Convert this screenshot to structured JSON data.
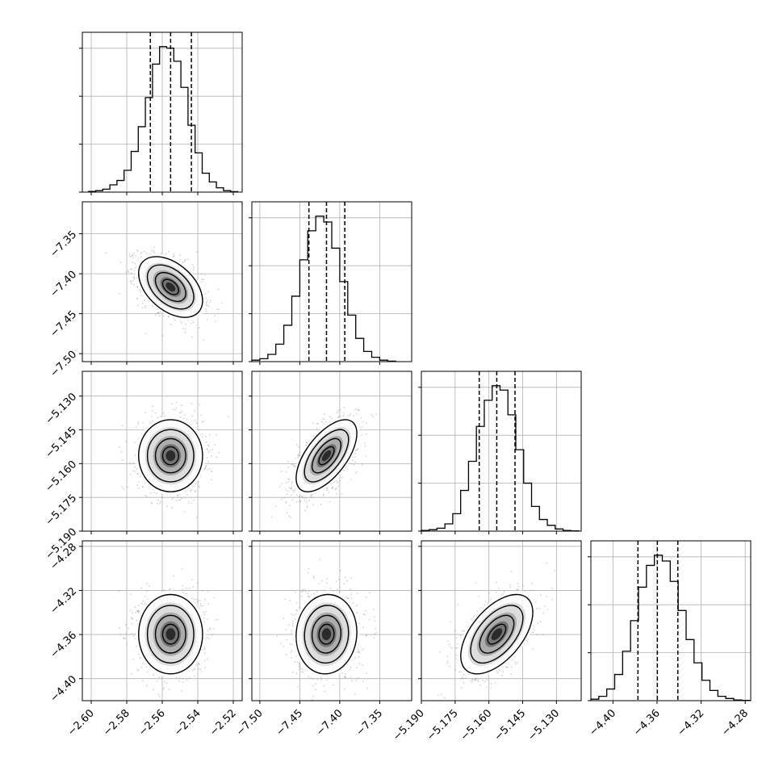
{
  "chart_data": {
    "type": "corner",
    "title": "",
    "grid": true,
    "params": [
      {
        "index": 0,
        "range": [
          -2.605,
          -2.515
        ],
        "ticks": [
          "-2.60",
          "-2.58",
          "-2.56",
          "-2.54",
          "-2.52"
        ],
        "tick_values": [
          -2.6,
          -2.58,
          -2.56,
          -2.54,
          -2.52
        ],
        "quantiles": [
          -2.5667,
          -2.5553,
          -2.5436
        ],
        "histogram": {
          "bin_centers": [
            -2.5995,
            -2.5955,
            -2.5915,
            -2.5875,
            -2.5835,
            -2.5795,
            -2.5755,
            -2.5715,
            -2.5675,
            -2.5635,
            -2.5595,
            -2.5555,
            -2.5515,
            -2.5475,
            -2.5435,
            -2.5395,
            -2.5355,
            -2.5315,
            -2.5275,
            -2.5235,
            -2.5195
          ],
          "counts": [
            0.5,
            1,
            2,
            5,
            8,
            15,
            28,
            45,
            65,
            88,
            100,
            99,
            90,
            72,
            46,
            27,
            13,
            7,
            3,
            1,
            0.3
          ]
        }
      },
      {
        "index": 1,
        "range": [
          -7.51,
          -7.31
        ],
        "ticks": [
          "-7.50",
          "-7.45",
          "-7.40",
          "-7.35"
        ],
        "tick_values": [
          -7.5,
          -7.45,
          -7.4,
          -7.35
        ],
        "quantiles": [
          -7.4386,
          -7.4166,
          -7.3937
        ],
        "histogram": {
          "bin_centers": [
            -7.505,
            -7.495,
            -7.485,
            -7.475,
            -7.465,
            -7.455,
            -7.445,
            -7.435,
            -7.425,
            -7.415,
            -7.405,
            -7.395,
            -7.385,
            -7.375,
            -7.365,
            -7.355,
            -7.345,
            -7.335
          ],
          "counts": [
            1,
            2,
            5,
            12,
            25,
            45,
            70,
            90,
            100,
            96,
            78,
            55,
            32,
            16,
            7,
            3,
            1,
            0.3
          ]
        }
      },
      {
        "index": 2,
        "range": [
          -5.19,
          -5.119
        ],
        "ticks": [
          "-5.190",
          "-5.175",
          "-5.160",
          "-5.145",
          "-5.130"
        ],
        "tick_values": [
          -5.19,
          -5.175,
          -5.16,
          -5.145,
          -5.13
        ],
        "quantiles": [
          -5.1643,
          -5.1565,
          -5.1484
        ],
        "histogram": {
          "bin_centers": [
            -5.1883,
            -5.1848,
            -5.1813,
            -5.1778,
            -5.1743,
            -5.1708,
            -5.1673,
            -5.1638,
            -5.1603,
            -5.1568,
            -5.1533,
            -5.1498,
            -5.1463,
            -5.1428,
            -5.1393,
            -5.1358,
            -5.1323,
            -5.1288,
            -5.1253,
            -5.1218
          ],
          "counts": [
            0.5,
            1,
            2,
            5,
            12,
            28,
            48,
            72,
            90,
            100,
            97,
            80,
            56,
            33,
            17,
            8,
            4,
            1.5,
            0.5,
            0.2
          ]
        }
      },
      {
        "index": 3,
        "range": [
          -4.42,
          -4.275
        ],
        "ticks": [
          "-4.40",
          "-4.36",
          "-4.32",
          "-4.28"
        ],
        "tick_values": [
          -4.4,
          -4.36,
          -4.32,
          -4.28
        ],
        "quantiles": [
          -4.3773,
          -4.3597,
          -4.3411
        ],
        "histogram": {
          "bin_centers": [
            -4.4164,
            -4.4092,
            -4.402,
            -4.3948,
            -4.3876,
            -4.3804,
            -4.3732,
            -4.366,
            -4.3588,
            -4.3516,
            -4.3444,
            -4.3372,
            -4.33,
            -4.3228,
            -4.3156,
            -4.3084,
            -4.3012,
            -4.294,
            -4.2868,
            -4.2796
          ],
          "counts": [
            1,
            3,
            8,
            18,
            34,
            55,
            78,
            93,
            100,
            96,
            82,
            62,
            42,
            26,
            14,
            7,
            3,
            1.5,
            0.5,
            0.2
          ]
        }
      }
    ],
    "pairs": [
      {
        "row": 1,
        "col": 0,
        "mean": [
          -2.5553,
          -7.4166
        ],
        "sd": [
          0.009,
          0.019
        ],
        "corr": -0.45
      },
      {
        "row": 2,
        "col": 0,
        "mean": [
          -2.5553,
          -5.1565
        ],
        "sd": [
          0.009,
          0.008
        ],
        "corr": 0.0
      },
      {
        "row": 2,
        "col": 1,
        "mean": [
          -7.4166,
          -5.1565
        ],
        "sd": [
          0.019,
          0.008
        ],
        "corr": 0.62
      },
      {
        "row": 3,
        "col": 0,
        "mean": [
          -2.5553,
          -4.3597
        ],
        "sd": [
          0.009,
          0.018
        ],
        "corr": 0.0
      },
      {
        "row": 3,
        "col": 1,
        "mean": [
          -7.4166,
          -4.3597
        ],
        "sd": [
          0.019,
          0.018
        ],
        "corr": 0.05
      },
      {
        "row": 3,
        "col": 2,
        "mean": [
          -5.1565,
          -4.3597
        ],
        "sd": [
          0.008,
          0.018
        ],
        "corr": 0.55
      }
    ],
    "contour_levels": [
      0.5,
      1.0,
      1.5,
      2.0
    ],
    "colors": {
      "line": "#000000",
      "grid": "#b0b0b0",
      "density": "#000000",
      "points": "#7f7f7f"
    }
  }
}
